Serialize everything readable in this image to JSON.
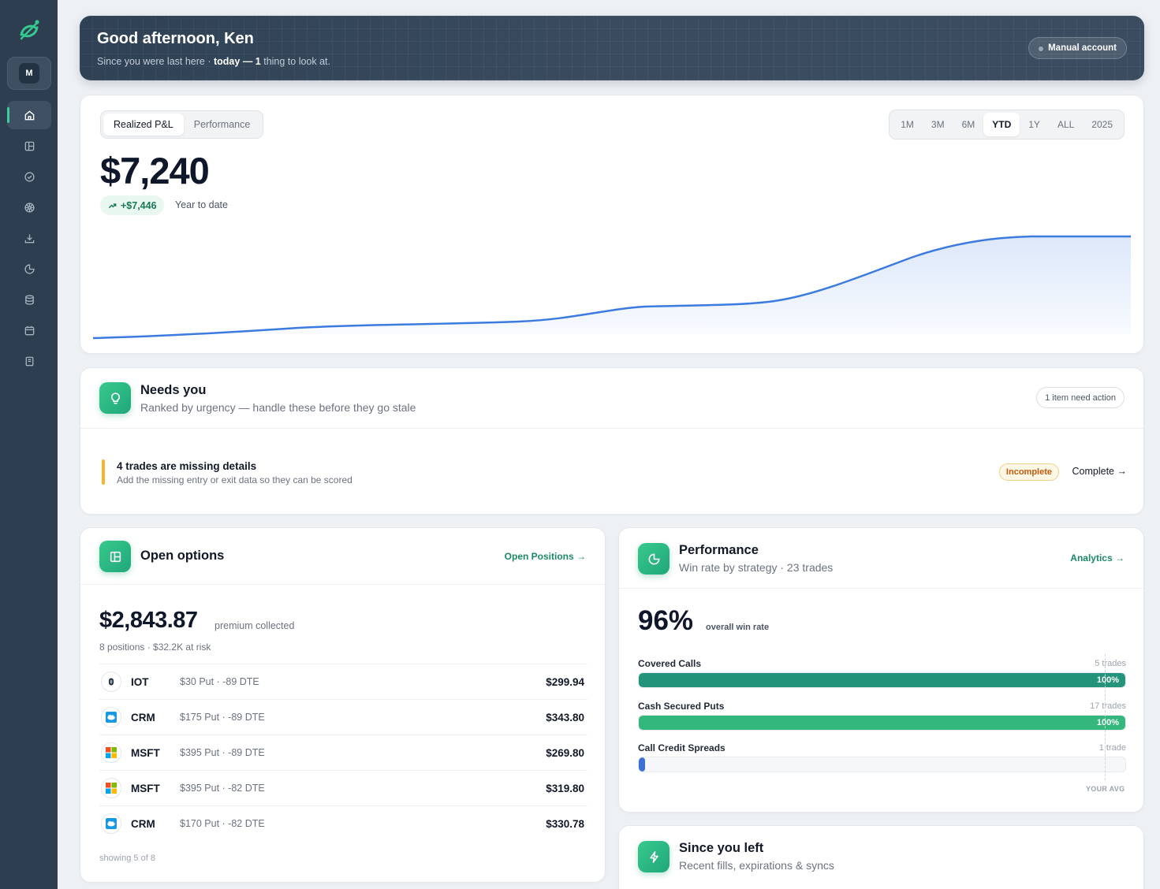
{
  "user": {
    "avatar_initial": "M"
  },
  "sidebar": {
    "items": [
      {
        "icon": "home-icon",
        "active": true
      },
      {
        "icon": "layout-icon",
        "active": false
      },
      {
        "icon": "check-circle-icon",
        "active": false
      },
      {
        "icon": "wheel-icon",
        "active": false
      },
      {
        "icon": "download-icon",
        "active": false
      },
      {
        "icon": "pie-icon",
        "active": false
      },
      {
        "icon": "database-icon",
        "active": false
      },
      {
        "icon": "calendar-icon",
        "active": false
      },
      {
        "icon": "notebook-icon",
        "active": false
      }
    ]
  },
  "header": {
    "greeting": "Good afternoon, Ken",
    "sub_prefix": "Since you were last here · ",
    "sub_when": "today",
    "sub_dash": " — ",
    "sub_count": "1",
    "sub_suffix": " thing to look at.",
    "account_badge": "Manual account"
  },
  "pnl": {
    "tabs": [
      "Realized P&L",
      "Performance"
    ],
    "active_tab": "Realized P&L",
    "ranges": [
      "1M",
      "3M",
      "6M",
      "YTD",
      "1Y",
      "ALL",
      "2025"
    ],
    "active_range": "YTD",
    "value": "$7,240",
    "delta": "+$7,446",
    "delta_note": "Year to date",
    "line_color": "#3b7be0"
  },
  "needs": {
    "title": "Needs you",
    "subtitle": "Ranked by urgency — handle these before they go stale",
    "action_count": "1 item need action",
    "alert": {
      "title": "4 trades are missing details",
      "subtitle": "Add the missing entry or exit data so they can be scored",
      "badge": "Incomplete",
      "link": "Complete →"
    }
  },
  "open_options": {
    "title": "Open options",
    "link": "Open Positions →",
    "premium": "$2,843.87",
    "premium_label": "premium collected",
    "summary": "8 positions · $32.2K at risk",
    "positions": [
      {
        "ticker": "IOT",
        "desc": "$30 Put · -89 DTE",
        "value": "$299.94",
        "logo": "samsara-icon"
      },
      {
        "ticker": "CRM",
        "desc": "$175 Put · -89 DTE",
        "value": "$343.80",
        "logo": "salesforce-icon"
      },
      {
        "ticker": "MSFT",
        "desc": "$395 Put · -89 DTE",
        "value": "$269.80",
        "logo": "microsoft-icon"
      },
      {
        "ticker": "MSFT",
        "desc": "$395 Put · -82 DTE",
        "value": "$319.80",
        "logo": "microsoft-icon"
      },
      {
        "ticker": "CRM",
        "desc": "$170 Put · -82 DTE",
        "value": "$330.78",
        "logo": "salesforce-icon"
      }
    ],
    "footer": "showing 5 of 8"
  },
  "performance": {
    "title": "Performance",
    "subtitle": "Win rate by strategy · 23 trades",
    "link": "Analytics →",
    "win_rate": "96%",
    "win_rate_label": "overall win rate",
    "strategies": [
      {
        "name": "Covered Calls",
        "count": "5 trades",
        "pct": "100%",
        "fill": 1.0,
        "color": "#23937a"
      },
      {
        "name": "Cash Secured Puts",
        "count": "17 trades",
        "pct": "100%",
        "fill": 1.0,
        "color": "#34b77c"
      },
      {
        "name": "Call Credit Spreads",
        "count": "1 trade",
        "pct": "",
        "fill": 0.0,
        "color": "#3b6fd4"
      }
    ],
    "avg_label": "YOUR AVG"
  },
  "since_left": {
    "title": "Since you left",
    "subtitle": "Recent fills, expirations & syncs"
  }
}
